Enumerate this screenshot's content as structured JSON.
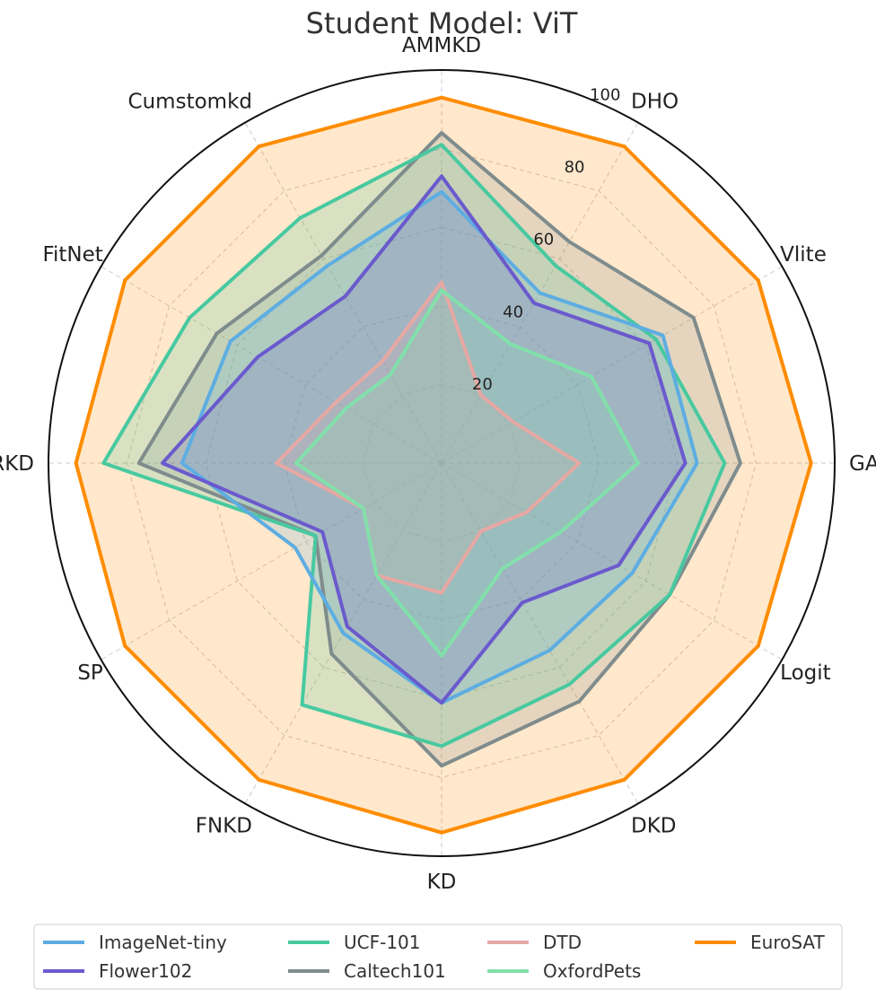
{
  "chart_data": {
    "type": "radar",
    "title": "Student Model: ViT",
    "axes": [
      "AMMKD",
      "DHO",
      "Vlite",
      "GA",
      "Logit",
      "DKD",
      "KD",
      "FNKD",
      "SP",
      "RKD",
      "FitNet",
      "Cumstomkd"
    ],
    "rlim": [
      0,
      100
    ],
    "rticks": [
      20,
      40,
      60,
      80,
      100
    ],
    "grid": true,
    "legend_position": "bottom",
    "series": [
      {
        "name": "EuroSAT",
        "color": "#ff8c00",
        "values": [
          93,
          93,
          93,
          94,
          93,
          93,
          94,
          93,
          93,
          93,
          93,
          93
        ]
      },
      {
        "name": "Caltech101",
        "color": "#7f8c8d",
        "values": [
          84,
          65,
          74,
          76,
          67,
          70,
          77,
          56,
          37,
          77,
          66,
          61
        ]
      },
      {
        "name": "UCF-101",
        "color": "#48c9a0",
        "values": [
          81,
          58,
          63,
          72,
          67,
          65,
          72,
          71,
          37,
          86,
          74,
          72
        ]
      },
      {
        "name": "ImageNet-tiny",
        "color": "#5dade2",
        "values": [
          69,
          50,
          65,
          65,
          56,
          55,
          61,
          50,
          43,
          66,
          62,
          58
        ]
      },
      {
        "name": "Flower102",
        "color": "#6a5acd",
        "values": [
          73,
          47,
          61,
          62,
          52,
          41,
          61,
          48,
          35,
          71,
          54,
          49
        ]
      },
      {
        "name": "DTD",
        "color": "#e6a8a3",
        "values": [
          46,
          20,
          21,
          35,
          25,
          20,
          33,
          33,
          23,
          42,
          31,
          30
        ]
      },
      {
        "name": "OxfordPets",
        "color": "#82e0aa",
        "values": [
          44,
          35,
          44,
          50,
          35,
          31,
          49,
          33,
          23,
          37,
          28,
          26
        ]
      }
    ],
    "legend": [
      "ImageNet-tiny",
      "UCF-101",
      "DTD",
      "EuroSAT",
      "Flower102",
      "Caltech101",
      "OxfordPets"
    ]
  }
}
